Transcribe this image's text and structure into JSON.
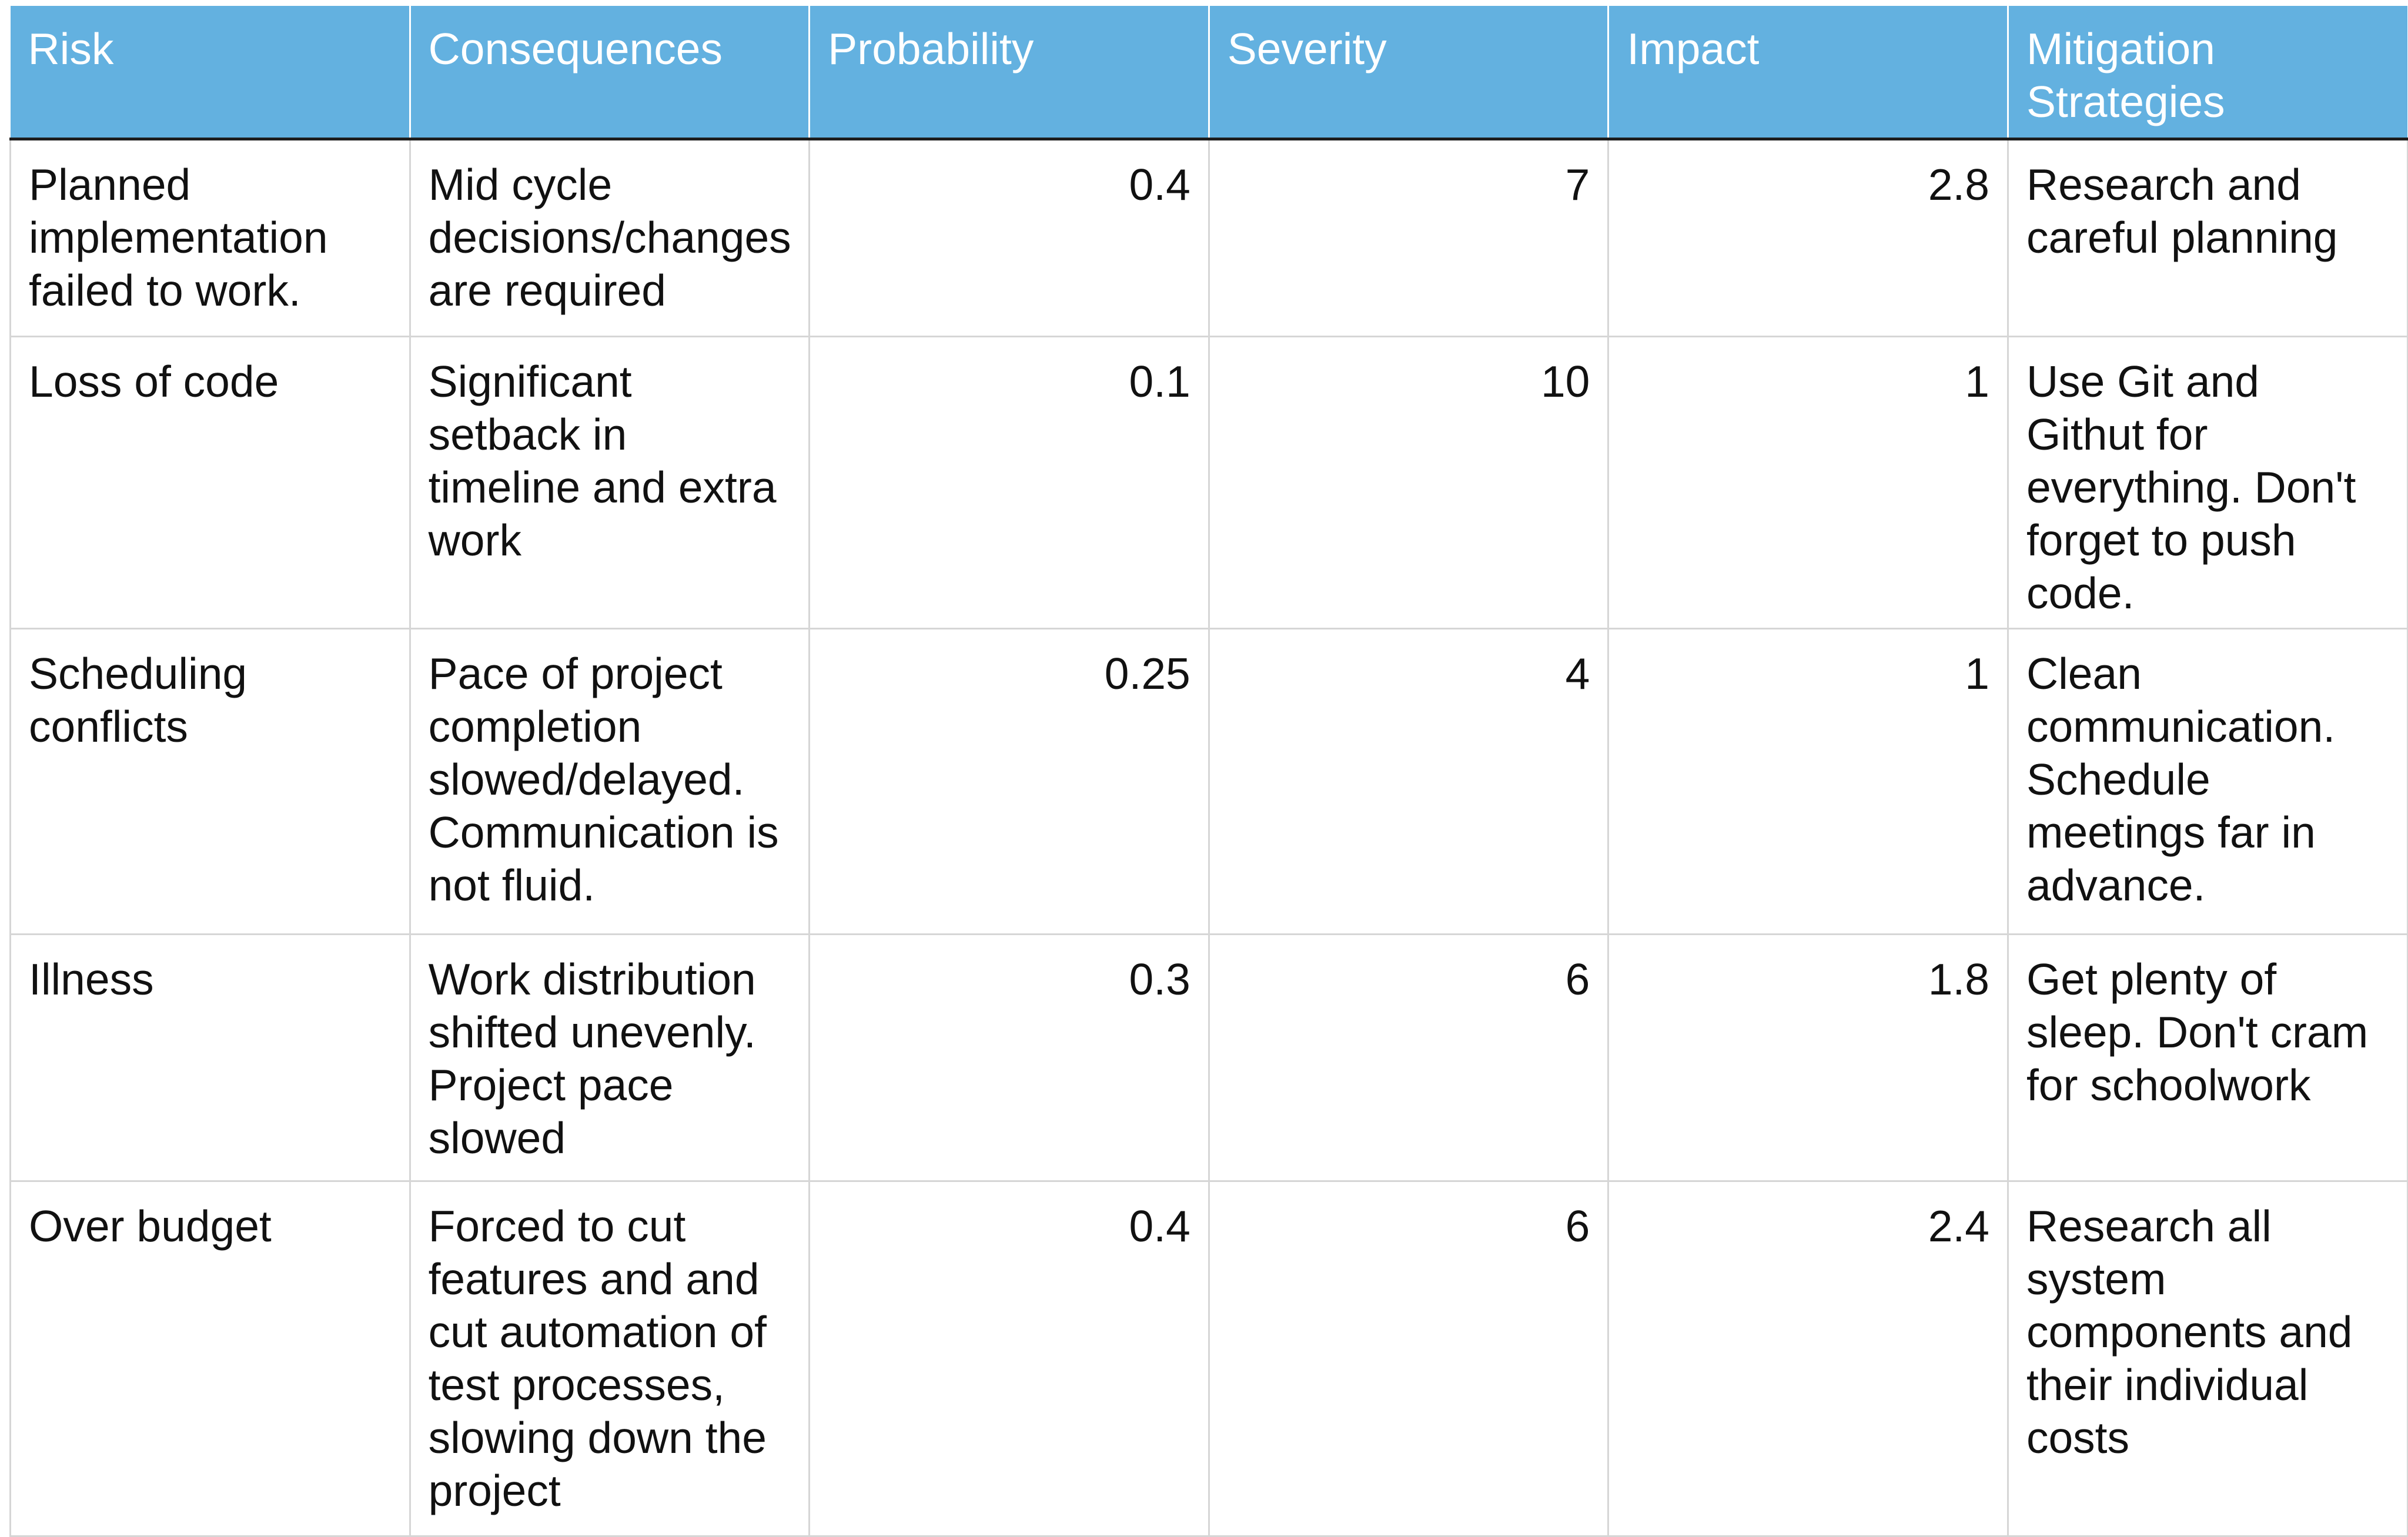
{
  "table": {
    "headers": [
      "Risk",
      "Consequences",
      "Probability",
      "Severity",
      "Impact",
      "Mitigation Strategies"
    ],
    "rows": [
      [
        "Planned implementation failed to work.",
        "Mid cycle decisions/changes are required",
        "0.4",
        "7",
        "2.8",
        "Research and careful planning"
      ],
      [
        "Loss of code",
        "Significant setback in timeline and extra work",
        "0.1",
        "10",
        "1",
        "Use Git and Githut for everything. Don't forget to push code."
      ],
      [
        "Scheduling conflicts",
        "Pace of project completion slowed/delayed. Communication is not fluid.",
        "0.25",
        "4",
        "1",
        "Clean communication. Schedule meetings far in advance."
      ],
      [
        "Illness",
        "Work distribution shifted unevenly. Project pace slowed",
        "0.3",
        "6",
        "1.8",
        "Get plenty of sleep.  Don't cram for schoolwork"
      ],
      [
        "Over budget",
        "Forced to cut features and and cut automation of test processes, slowing down the project",
        "0.4",
        "6",
        "2.4",
        "Research all system components and their individual costs"
      ]
    ]
  }
}
